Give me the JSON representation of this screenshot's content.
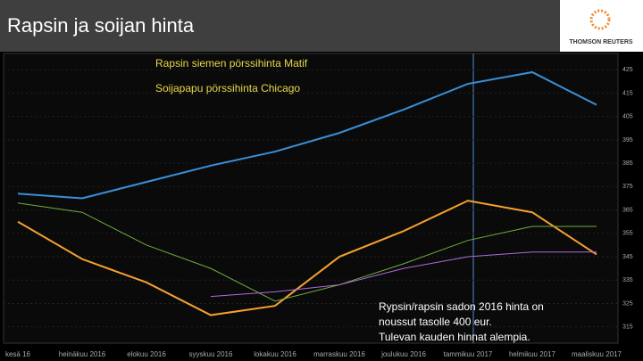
{
  "header": {
    "title": "Rapsin ja soijan hinta",
    "logo": "THOMSON REUTERS"
  },
  "chart_data": {
    "type": "line",
    "categories": [
      "kesä 16",
      "heinäkuu 2016",
      "elokuu 2016",
      "syyskuu 2016",
      "lokakuu 2016",
      "marraskuu 2016",
      "joulukuu 2016",
      "tammikuu 2017",
      "helmikuu 2017",
      "maaliskuu 2017"
    ],
    "series": [
      {
        "name": "Rapsin siemen pörssihinta Matif",
        "color": "#3a8fd9",
        "values": [
          372,
          370,
          377,
          384,
          390,
          398,
          408,
          419,
          424,
          410
        ]
      },
      {
        "name": "Soijapapu pörssihinta Chicago",
        "color": "#f5a030",
        "values": [
          360,
          344,
          334,
          320,
          324,
          345,
          356,
          369,
          364,
          346
        ]
      },
      {
        "color": "#6fae3c",
        "values": [
          368,
          364,
          350,
          340,
          326,
          333,
          342,
          352,
          358,
          358
        ]
      },
      {
        "color": "#b06adf",
        "values": [
          null,
          null,
          null,
          328,
          330,
          333,
          340,
          345,
          347,
          347
        ]
      }
    ],
    "ylim": [
      308,
      432
    ],
    "yticks": [
      315,
      325,
      335,
      345,
      355,
      365,
      375,
      385,
      395,
      405,
      415,
      425
    ],
    "grid": true,
    "annotation": [
      "Rypsin/rapsin sadon 2016 hinta on",
      "noussut tasolle 400 eur.",
      "Tulevan kauden hinnat alempia."
    ]
  }
}
